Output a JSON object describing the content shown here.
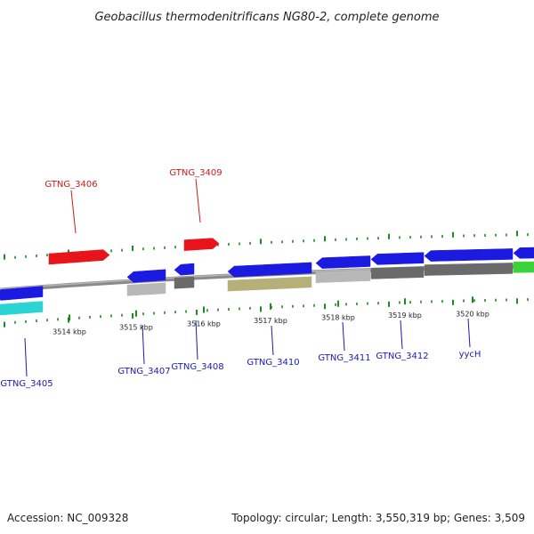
{
  "title": "Geobacillus thermodenitrificans NG80-2, complete genome",
  "footer": {
    "accession": "Accession: NC_009328",
    "summary": "Topology: circular; Length: 3,550,319 bp; Genes: 3,509"
  },
  "colors": {
    "red_strand": "#e8141c",
    "blue_strand": "#1a1ae0",
    "backbone": "#8a8a8a",
    "ticks": "#1f8a1f",
    "label_red": "#cc1a1a",
    "label_blue": "#1a1ab4"
  },
  "scale": {
    "unit": "kbp",
    "ticks": [
      {
        "kbp": 3514,
        "label": "3514 kbp"
      },
      {
        "kbp": 3515,
        "label": "3515 kbp"
      },
      {
        "kbp": 3516,
        "label": "3516 kbp"
      },
      {
        "kbp": 3517,
        "label": "3517 kbp"
      },
      {
        "kbp": 3518,
        "label": "3518 kbp"
      },
      {
        "kbp": 3519,
        "label": "3519 kbp"
      },
      {
        "kbp": 3520,
        "label": "3520 kbp"
      }
    ]
  },
  "genes": [
    {
      "name": "GTNG_3405",
      "strand": "reverse",
      "track_color": "#1a1ae0",
      "sub_color": "#2ad4d4"
    },
    {
      "name": "GTNG_3406",
      "strand": "forward",
      "track_color": "#e8141c"
    },
    {
      "name": "GTNG_3407",
      "strand": "reverse",
      "track_color": "#1a1ae0",
      "sub_color": "#b8b8b8"
    },
    {
      "name": "GTNG_3408",
      "strand": "reverse",
      "track_color": "#1a1ae0",
      "sub_color": "#6a6a6a"
    },
    {
      "name": "GTNG_3409",
      "strand": "forward",
      "track_color": "#e8141c"
    },
    {
      "name": "GTNG_3410",
      "strand": "reverse",
      "track_color": "#1a1ae0",
      "sub_color": "#b5b07a"
    },
    {
      "name": "GTNG_3411",
      "strand": "reverse",
      "track_color": "#1a1ae0",
      "sub_color": "#b8b8b8"
    },
    {
      "name": "GTNG_3412",
      "strand": "reverse",
      "track_color": "#1a1ae0",
      "sub_color": "#6a6a6a"
    },
    {
      "name": "yycH",
      "strand": "reverse",
      "track_color": "#1a1ae0",
      "sub_color": "#6a6a6a"
    },
    {
      "name": "",
      "strand": "reverse",
      "track_color": "#1a1ae0",
      "sub_color": "#3ad43a"
    }
  ]
}
